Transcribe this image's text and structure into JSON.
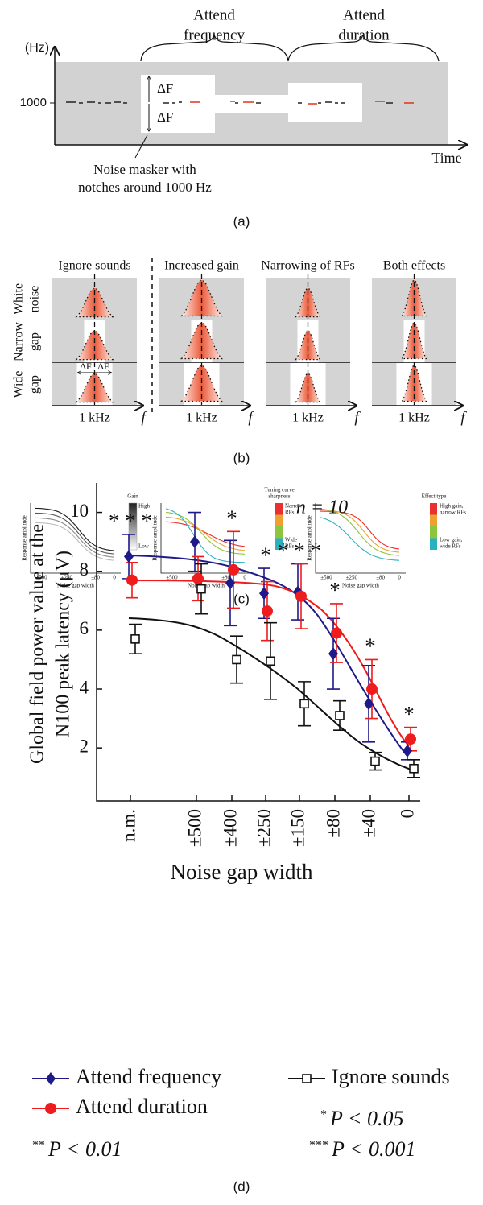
{
  "panel_a": {
    "y_unit": "(Hz)",
    "y_tick": "1000",
    "attend_frequency": [
      "Attend",
      "frequency"
    ],
    "attend_duration": [
      "Attend",
      "duration"
    ],
    "delta_labels": [
      "ΔF",
      "ΔF"
    ],
    "x_label": "Time",
    "masker_note": [
      "Noise masker with",
      "notches around 1000 Hz"
    ],
    "label": "(a)"
  },
  "panel_b": {
    "columns": [
      "Ignore sounds",
      "Increased gain",
      "Narrowing of RFs",
      "Both effects"
    ],
    "rows": [
      [
        "White",
        "noise"
      ],
      [
        "Narrow",
        "gap"
      ],
      [
        "Wide",
        "gap"
      ]
    ],
    "x_labels": [
      "1 kHz",
      "1 kHz",
      "1 kHz",
      "1 kHz"
    ],
    "axis_labels": [
      "f",
      "f",
      "f",
      "f"
    ],
    "delta_labels": [
      "ΔF",
      "ΔF"
    ],
    "label": "(b)"
  },
  "panel_c": {
    "plots": [
      {
        "y_label": "Response amplitude",
        "x_label": "Noise gap width",
        "x_ticks": [
          "±500",
          "±250",
          "±80",
          "0"
        ],
        "colorbar_title": [
          "Gain"
        ],
        "colorbar_top": [
          "High"
        ],
        "colorbar_bottom": [
          "Low"
        ]
      },
      {
        "y_label": "Response amplitude",
        "x_label": "Noise gap width",
        "x_ticks": [
          "±500",
          "±250",
          "±80",
          "0"
        ],
        "colorbar_title": [
          "Tuning curve",
          "sharpness"
        ],
        "colorbar_top": [
          "Narrow",
          "RFs"
        ],
        "colorbar_bottom": [
          "Wide",
          "RFs"
        ]
      },
      {
        "y_label": "Response amplitude",
        "x_label": "Noise gap width",
        "x_ticks": [
          "±500",
          "±250",
          "±80",
          "0"
        ],
        "colorbar_title": [
          "Effect type"
        ],
        "colorbar_top": [
          "High gain,",
          "narrow RFs"
        ],
        "colorbar_bottom": [
          "Low gain,",
          "wide RFs"
        ]
      }
    ],
    "label": "(c)"
  },
  "chart_data": {
    "type": "line",
    "annotation": "n = 10",
    "y_label": [
      "Global field power value at the",
      "N100 peak latency (μV)"
    ],
    "x_label": "Noise gap width",
    "categories": [
      "n.m.",
      "±500",
      "±400",
      "±250",
      "±150",
      "±80",
      "±40",
      "0"
    ],
    "series": [
      {
        "name": "Attend frequency",
        "color": "#1f1a8a",
        "marker": "diamond",
        "values": [
          8.5,
          9.0,
          7.6,
          7.25,
          7.3,
          5.2,
          3.5,
          1.9
        ],
        "errors": [
          0.75,
          1.0,
          1.45,
          0.85,
          0.95,
          1.2,
          1.3,
          0.3
        ]
      },
      {
        "name": "Attend duration",
        "color": "#ee1c1c",
        "marker": "circle",
        "values": [
          7.7,
          7.75,
          8.05,
          6.65,
          7.15,
          5.9,
          4.0,
          2.3
        ],
        "errors": [
          0.6,
          0.75,
          1.3,
          1.0,
          1.1,
          1.0,
          1.0,
          0.4
        ]
      },
      {
        "name": "Ignore sounds",
        "color": "#111111",
        "marker": "square",
        "values": [
          5.7,
          7.4,
          5.0,
          4.95,
          3.5,
          3.1,
          1.55,
          1.3
        ],
        "errors": [
          0.5,
          0.85,
          0.8,
          1.3,
          0.75,
          0.5,
          0.3,
          0.3
        ]
      }
    ],
    "ylim": [
      0.2,
      11
    ],
    "yticks": [
      2,
      4,
      6,
      8,
      10
    ],
    "significance_marks": [
      "* * *",
      null,
      "*",
      "*",
      "* * *",
      "*",
      "*",
      "*"
    ],
    "significance_legend": [
      {
        "stars": "*",
        "text": "P < 0.05"
      },
      {
        "stars": "**",
        "text": "P < 0.01"
      },
      {
        "stars": "***",
        "text": "P < 0.001"
      }
    ],
    "label": "(d)"
  }
}
